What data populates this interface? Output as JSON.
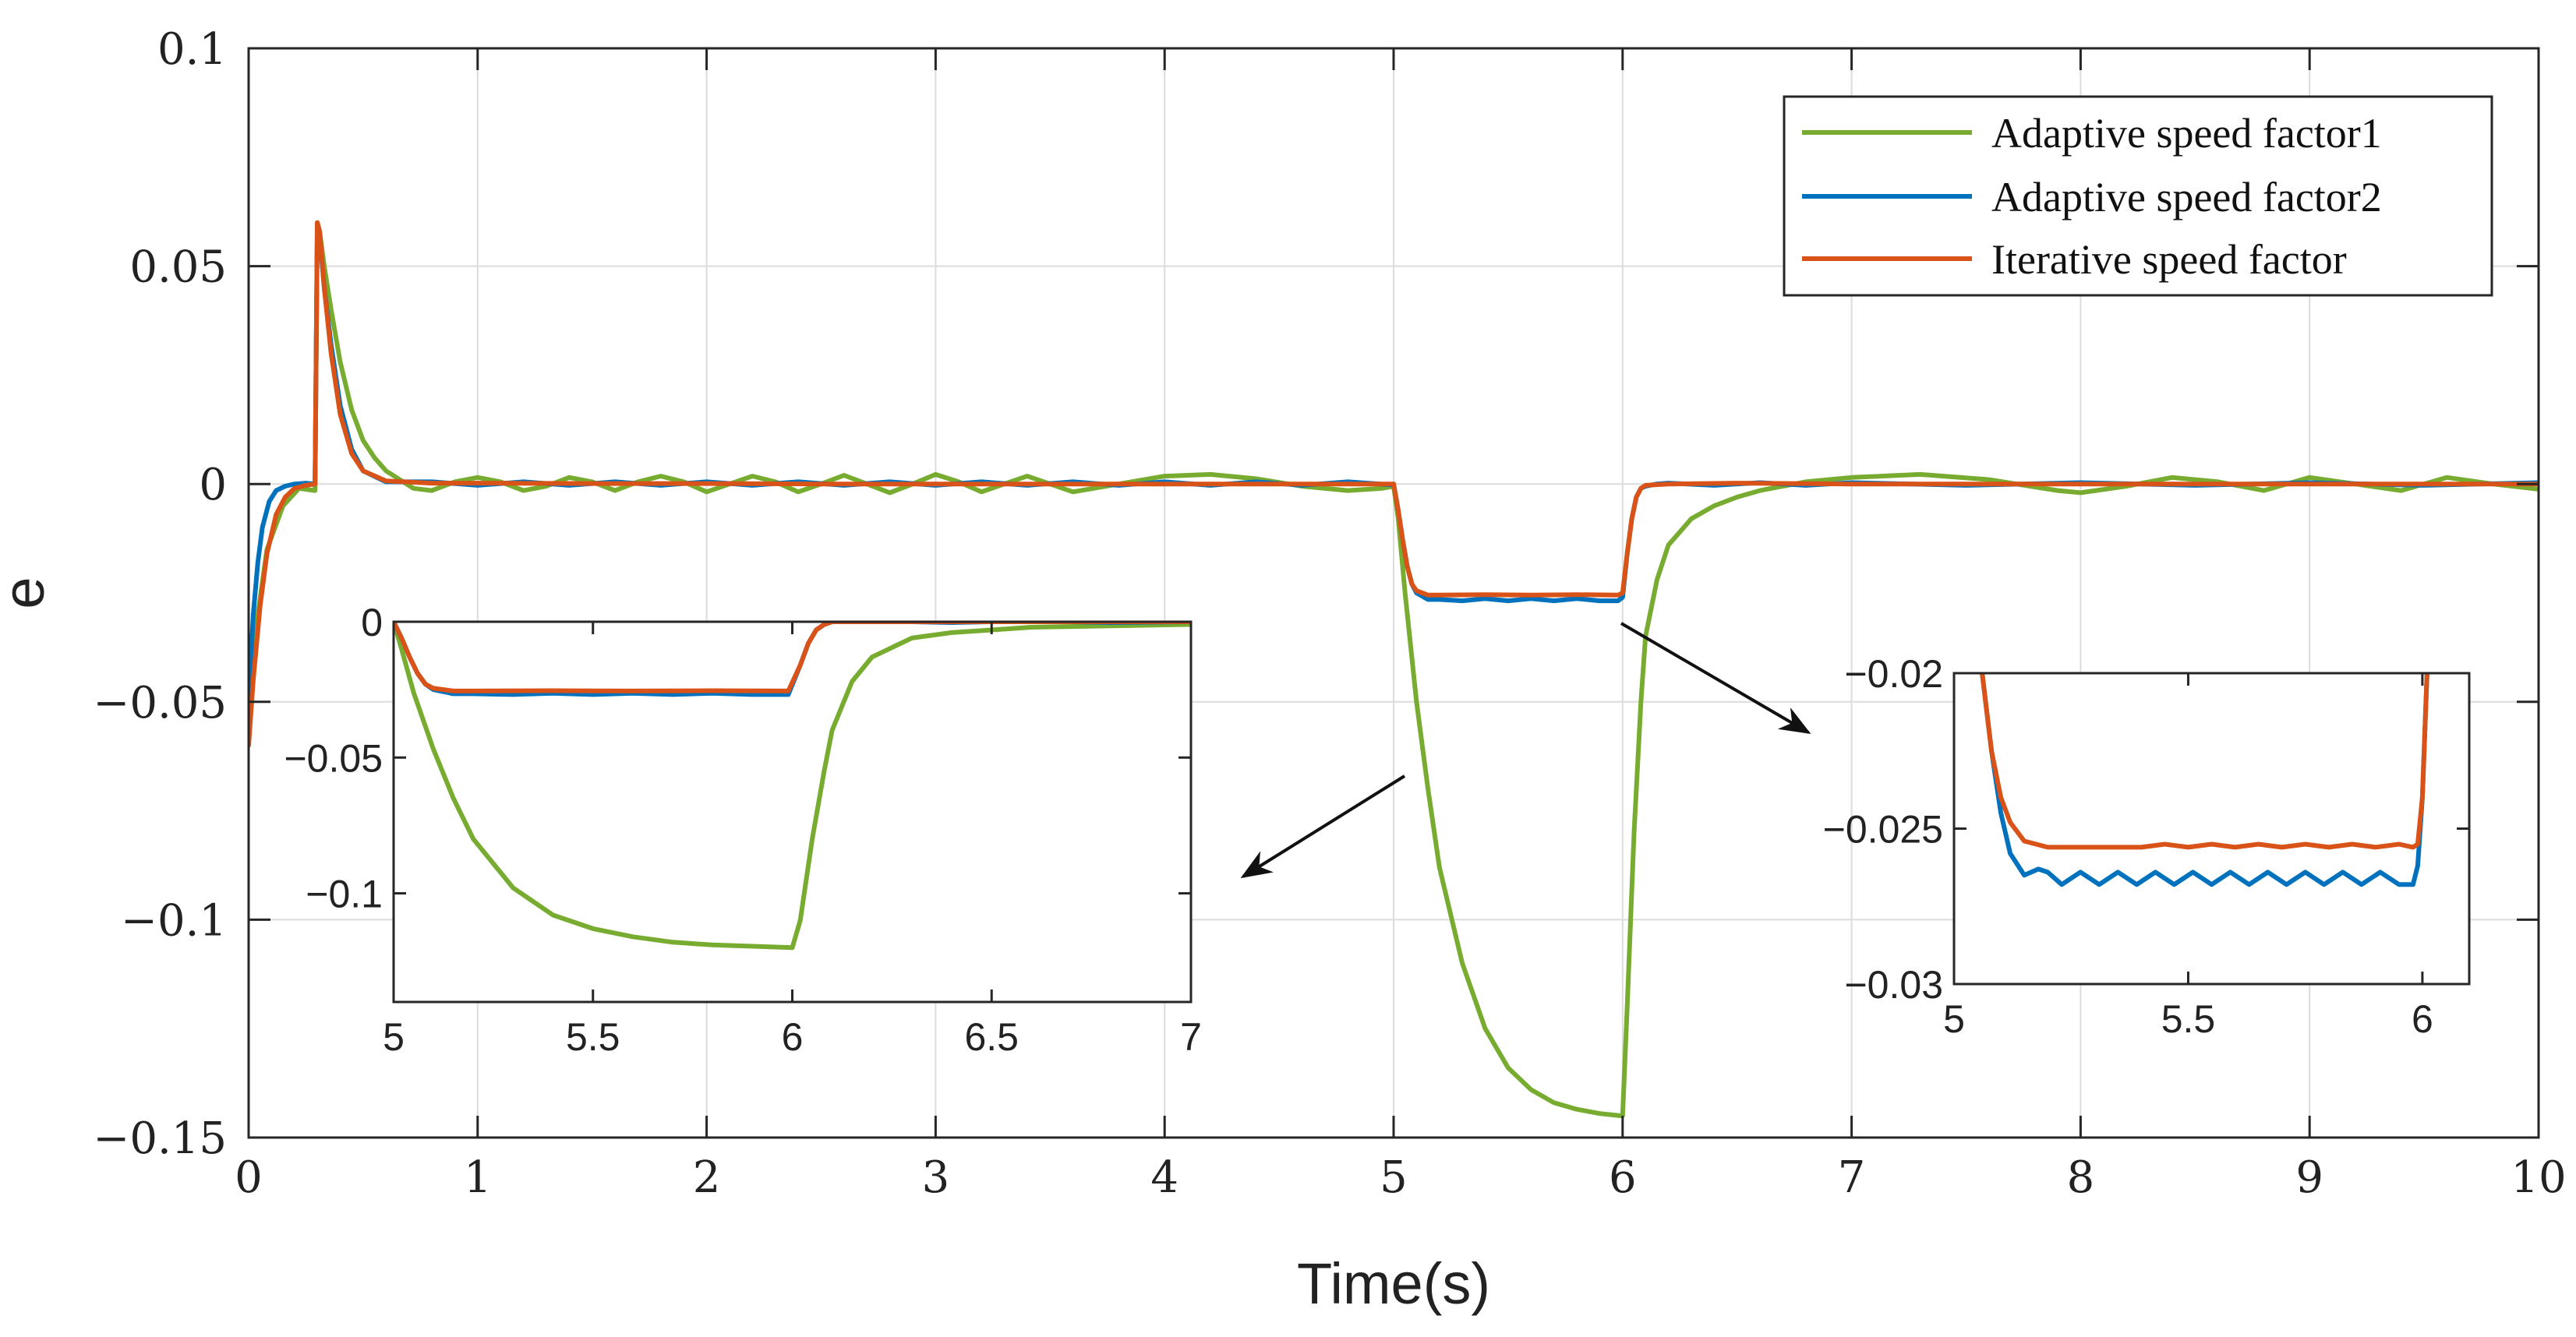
{
  "chart_data": [
    {
      "id": "main",
      "type": "line",
      "title": "",
      "xlabel": "Time(s)",
      "ylabel": "e",
      "xlim": [
        0,
        10
      ],
      "ylim": [
        -0.15,
        0.1
      ],
      "xticks": [
        0,
        1,
        2,
        3,
        4,
        5,
        6,
        7,
        8,
        9,
        10
      ],
      "xtick_labels": [
        "0",
        "1",
        "2",
        "3",
        "4",
        "5",
        "6",
        "7",
        "8",
        "9",
        "10"
      ],
      "yticks": [
        0.1,
        0.05,
        0,
        -0.05,
        -0.1,
        -0.15
      ],
      "ytick_labels": [
        "0.1",
        "0.05",
        "0",
        "−0.05",
        "−0.1",
        "−0.15"
      ],
      "grid": true,
      "legend_position": "top-right",
      "series": [
        {
          "name": "Adaptive speed factor1",
          "color": "#77AC30",
          "x": [
            0,
            0.04,
            0.08,
            0.15,
            0.22,
            0.29,
            0.3,
            0.31,
            0.33,
            0.36,
            0.4,
            0.45,
            0.5,
            0.55,
            0.6,
            0.66,
            0.72,
            0.8,
            0.9,
            1.0,
            1.1,
            1.2,
            1.3,
            1.4,
            1.5,
            1.6,
            1.7,
            1.8,
            1.9,
            2.0,
            2.1,
            2.2,
            2.3,
            2.4,
            2.5,
            2.6,
            2.7,
            2.8,
            2.9,
            3.0,
            3.1,
            3.2,
            3.3,
            3.4,
            3.5,
            3.6,
            3.8,
            4.0,
            4.2,
            4.4,
            4.6,
            4.8,
            4.95,
            5.0,
            5.02,
            5.05,
            5.1,
            5.15,
            5.2,
            5.3,
            5.4,
            5.5,
            5.6,
            5.7,
            5.8,
            5.9,
            5.99,
            6.0,
            6.02,
            6.05,
            6.08,
            6.1,
            6.15,
            6.2,
            6.3,
            6.4,
            6.5,
            6.6,
            6.8,
            7.0,
            7.3,
            7.6,
            7.9,
            8.0,
            8.2,
            8.4,
            8.6,
            8.8,
            9.0,
            9.2,
            9.4,
            9.6,
            9.8,
            10.0
          ],
          "y": [
            -0.05,
            -0.03,
            -0.015,
            -0.005,
            -0.001,
            -0.0015,
            0.06,
            0.058,
            0.05,
            0.04,
            0.028,
            0.017,
            0.01,
            0.006,
            0.003,
            0.001,
            -0.001,
            -0.0015,
            0.0005,
            0.0015,
            0.0005,
            -0.0015,
            -0.0005,
            0.0015,
            0.0005,
            -0.0015,
            0.0005,
            0.0018,
            0.0005,
            -0.0018,
            0.0,
            0.0018,
            0.0005,
            -0.0018,
            0.0,
            0.002,
            0.0,
            -0.002,
            0.0,
            0.0022,
            0.0005,
            -0.0018,
            0.0,
            0.0018,
            0.0,
            -0.0018,
            0.0,
            0.0018,
            0.0022,
            0.0012,
            -0.0005,
            -0.0015,
            -0.001,
            -0.0005,
            -0.008,
            -0.025,
            -0.05,
            -0.07,
            -0.088,
            -0.11,
            -0.125,
            -0.134,
            -0.139,
            -0.142,
            -0.1435,
            -0.1445,
            -0.145,
            -0.145,
            -0.12,
            -0.08,
            -0.05,
            -0.035,
            -0.022,
            -0.014,
            -0.008,
            -0.005,
            -0.003,
            -0.0015,
            0.0005,
            0.0015,
            0.0022,
            0.001,
            -0.0015,
            -0.002,
            -0.0005,
            0.0015,
            0.0005,
            -0.0015,
            0.0015,
            0.0,
            -0.0015,
            0.0015,
            0.0,
            -0.0012
          ]
        },
        {
          "name": "Adaptive speed factor2",
          "color": "#0072BD",
          "x": [
            0,
            0.02,
            0.04,
            0.06,
            0.09,
            0.12,
            0.16,
            0.2,
            0.25,
            0.29,
            0.3,
            0.31,
            0.33,
            0.36,
            0.4,
            0.45,
            0.5,
            0.6,
            0.8,
            1.0,
            1.2,
            1.4,
            1.6,
            1.8,
            2.0,
            2.2,
            2.4,
            2.6,
            2.8,
            3.0,
            3.2,
            3.4,
            3.6,
            3.8,
            4.0,
            4.2,
            4.4,
            4.6,
            4.8,
            4.99,
            5.0,
            5.02,
            5.04,
            5.06,
            5.08,
            5.1,
            5.15,
            5.2,
            5.3,
            5.4,
            5.5,
            5.6,
            5.7,
            5.8,
            5.9,
            5.98,
            6.0,
            6.02,
            6.04,
            6.06,
            6.08,
            6.1,
            6.15,
            6.2,
            6.4,
            6.6,
            6.8,
            7.0,
            7.5,
            8.0,
            8.5,
            9.0,
            9.5,
            10.0
          ],
          "y": [
            -0.05,
            -0.03,
            -0.018,
            -0.01,
            -0.004,
            -0.0015,
            -0.0005,
            0.0,
            0.0002,
            0.0,
            0.059,
            0.057,
            0.045,
            0.032,
            0.018,
            0.008,
            0.003,
            0.0005,
            0.0005,
            -0.0003,
            0.0005,
            -0.0003,
            0.0005,
            -0.0003,
            0.0005,
            -0.0003,
            0.0005,
            -0.0003,
            0.0005,
            -0.0003,
            0.0005,
            -0.0003,
            0.0005,
            -0.0003,
            0.0005,
            -0.0003,
            0.0005,
            -0.0003,
            0.0005,
            -0.0002,
            0.0,
            -0.006,
            -0.013,
            -0.019,
            -0.023,
            -0.025,
            -0.0265,
            -0.0265,
            -0.0268,
            -0.0263,
            -0.0268,
            -0.0263,
            -0.0268,
            -0.0263,
            -0.0268,
            -0.0268,
            -0.026,
            -0.016,
            -0.008,
            -0.003,
            -0.001,
            -0.0005,
            0.0,
            0.0002,
            -0.0003,
            0.0003,
            -0.0003,
            0.0003,
            -0.0003,
            0.0003,
            -0.0003,
            0.0003,
            -0.0003,
            0.0003
          ]
        },
        {
          "name": "Iterative speed factor",
          "color": "#D95319",
          "x": [
            0,
            0.02,
            0.05,
            0.08,
            0.12,
            0.16,
            0.2,
            0.25,
            0.29,
            0.3,
            0.31,
            0.33,
            0.36,
            0.4,
            0.45,
            0.5,
            0.6,
            0.8,
            1.0,
            1.5,
            2.0,
            2.5,
            3.0,
            3.5,
            4.0,
            4.5,
            4.99,
            5.0,
            5.02,
            5.04,
            5.06,
            5.08,
            5.1,
            5.15,
            5.2,
            5.4,
            5.6,
            5.8,
            5.98,
            6.0,
            6.02,
            6.04,
            6.06,
            6.08,
            6.1,
            6.2,
            6.5,
            7.0,
            8.0,
            9.0,
            10.0
          ],
          "y": [
            -0.06,
            -0.045,
            -0.028,
            -0.016,
            -0.007,
            -0.003,
            -0.001,
            -0.0003,
            0.0,
            0.06,
            0.058,
            0.045,
            0.03,
            0.016,
            0.007,
            0.003,
            0.0007,
            0.0002,
            0.0002,
            0.0001,
            0.0001,
            0.0,
            0.0,
            0.0,
            0.0,
            0.0,
            0.0,
            0.0,
            -0.006,
            -0.013,
            -0.019,
            -0.023,
            -0.0245,
            -0.0255,
            -0.0255,
            -0.0254,
            -0.0255,
            -0.0254,
            -0.0255,
            -0.025,
            -0.016,
            -0.008,
            -0.003,
            -0.001,
            -0.0003,
            0.0,
            0.0002,
            0.0,
            0.0,
            0.0,
            0.0
          ]
        }
      ]
    },
    {
      "id": "inset_left",
      "type": "line",
      "xlim": [
        5,
        7
      ],
      "ylim": [
        -0.14,
        0
      ],
      "xticks": [
        5,
        5.5,
        6,
        6.5,
        7
      ],
      "xtick_labels": [
        "5",
        "5.5",
        "6",
        "6.5",
        "7"
      ],
      "yticks": [
        0,
        -0.05,
        -0.1
      ],
      "ytick_labels": [
        "0",
        "−0.05",
        "−0.1"
      ],
      "grid": false,
      "series": [
        {
          "name": "Adaptive speed factor1",
          "color": "#77AC30",
          "x": [
            5.0,
            5.02,
            5.05,
            5.1,
            5.15,
            5.2,
            5.3,
            5.4,
            5.5,
            5.6,
            5.7,
            5.8,
            5.9,
            6.0,
            6.02,
            6.05,
            6.08,
            6.1,
            6.15,
            6.2,
            6.3,
            6.4,
            6.5,
            6.6,
            6.8,
            7.0
          ],
          "y": [
            0.0,
            -0.01,
            -0.026,
            -0.047,
            -0.065,
            -0.08,
            -0.098,
            -0.108,
            -0.113,
            -0.116,
            -0.118,
            -0.119,
            -0.1195,
            -0.12,
            -0.11,
            -0.08,
            -0.055,
            -0.04,
            -0.022,
            -0.013,
            -0.006,
            -0.004,
            -0.003,
            -0.002,
            -0.0015,
            -0.001
          ]
        },
        {
          "name": "Adaptive speed factor2",
          "color": "#0072BD",
          "x": [
            5.0,
            5.02,
            5.04,
            5.06,
            5.08,
            5.1,
            5.15,
            5.2,
            5.3,
            5.4,
            5.5,
            5.6,
            5.7,
            5.8,
            5.9,
            5.99,
            6.02,
            6.04,
            6.06,
            6.08,
            6.1,
            6.2,
            6.4,
            6.6,
            6.8,
            7.0
          ],
          "y": [
            0.0,
            -0.006,
            -0.013,
            -0.019,
            -0.023,
            -0.025,
            -0.0265,
            -0.0265,
            -0.0268,
            -0.0263,
            -0.0268,
            -0.0263,
            -0.0268,
            -0.0263,
            -0.0268,
            -0.0268,
            -0.016,
            -0.008,
            -0.003,
            -0.001,
            0.0,
            0.0003,
            -0.0003,
            0.0003,
            -0.0003,
            0.0
          ]
        },
        {
          "name": "Iterative speed factor",
          "color": "#D95319",
          "x": [
            5.0,
            5.02,
            5.04,
            5.06,
            5.08,
            5.1,
            5.15,
            5.2,
            5.4,
            5.6,
            5.8,
            5.99,
            6.02,
            6.04,
            6.06,
            6.08,
            6.1,
            6.3,
            6.6,
            7.0
          ],
          "y": [
            0.0,
            -0.006,
            -0.013,
            -0.019,
            -0.023,
            -0.0245,
            -0.0255,
            -0.0255,
            -0.0254,
            -0.0255,
            -0.0254,
            -0.0255,
            -0.016,
            -0.008,
            -0.003,
            -0.001,
            0.0,
            0.0,
            0.0,
            0.0
          ]
        }
      ]
    },
    {
      "id": "inset_right",
      "type": "line",
      "xlim": [
        5,
        6.1
      ],
      "ylim": [
        -0.03,
        -0.02
      ],
      "xticks": [
        5,
        5.5,
        6
      ],
      "xtick_labels": [
        "5",
        "5.5",
        "6"
      ],
      "yticks": [
        -0.02,
        -0.025,
        -0.03
      ],
      "ytick_labels": [
        "−0.02",
        "−0.025",
        "−0.03"
      ],
      "grid": false,
      "series": [
        {
          "name": "Adaptive speed factor2",
          "color": "#0072BD",
          "x": [
            5.06,
            5.08,
            5.1,
            5.12,
            5.15,
            5.18,
            5.2,
            5.23,
            5.27,
            5.31,
            5.35,
            5.39,
            5.43,
            5.47,
            5.51,
            5.55,
            5.59,
            5.63,
            5.67,
            5.71,
            5.75,
            5.79,
            5.83,
            5.87,
            5.91,
            5.95,
            5.98,
            5.99,
            6.0,
            6.005,
            6.01
          ],
          "y": [
            -0.02,
            -0.0225,
            -0.0245,
            -0.0258,
            -0.0265,
            -0.0263,
            -0.0264,
            -0.0268,
            -0.0264,
            -0.0268,
            -0.0264,
            -0.0268,
            -0.0264,
            -0.0268,
            -0.0264,
            -0.0268,
            -0.0264,
            -0.0268,
            -0.0264,
            -0.0268,
            -0.0264,
            -0.0268,
            -0.0264,
            -0.0268,
            -0.0264,
            -0.0268,
            -0.0268,
            -0.0262,
            -0.024,
            -0.022,
            -0.02
          ]
        },
        {
          "name": "Iterative speed factor",
          "color": "#D95319",
          "x": [
            5.06,
            5.08,
            5.1,
            5.12,
            5.15,
            5.2,
            5.3,
            5.4,
            5.45,
            5.5,
            5.55,
            5.6,
            5.65,
            5.7,
            5.75,
            5.8,
            5.85,
            5.9,
            5.95,
            5.98,
            5.99,
            6.0,
            6.005,
            6.01
          ],
          "y": [
            -0.02,
            -0.0225,
            -0.024,
            -0.0248,
            -0.0254,
            -0.0256,
            -0.0256,
            -0.0256,
            -0.0255,
            -0.0256,
            -0.0255,
            -0.0256,
            -0.0255,
            -0.0256,
            -0.0255,
            -0.0256,
            -0.0255,
            -0.0256,
            -0.0255,
            -0.0256,
            -0.0255,
            -0.024,
            -0.022,
            -0.02
          ]
        }
      ]
    }
  ]
}
